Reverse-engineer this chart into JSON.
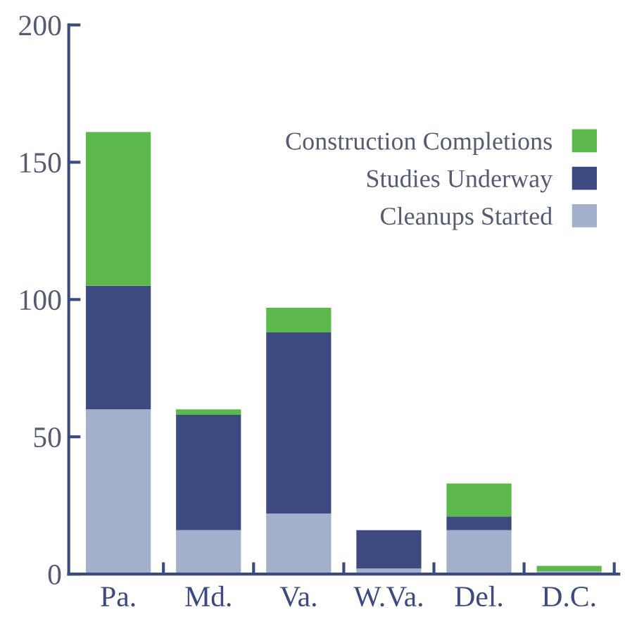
{
  "chart_data": {
    "type": "bar",
    "stacked": true,
    "categories": [
      "Pa.",
      "Md.",
      "Va.",
      "W.Va.",
      "Del.",
      "D.C."
    ],
    "series": [
      {
        "name": "Cleanups Started",
        "color": "#a3b0cc",
        "values": [
          60,
          16,
          22,
          2,
          16,
          1
        ]
      },
      {
        "name": "Studies Underway",
        "color": "#3c4a80",
        "values": [
          45,
          42,
          66,
          14,
          5,
          0
        ]
      },
      {
        "name": "Construction Completions",
        "color": "#5cb84a",
        "values": [
          56,
          2,
          9,
          0,
          12,
          2
        ]
      }
    ],
    "ylim": [
      0,
      200
    ],
    "yticks": [
      0,
      50,
      100,
      150,
      200
    ],
    "grid": false,
    "legend": "top right"
  }
}
